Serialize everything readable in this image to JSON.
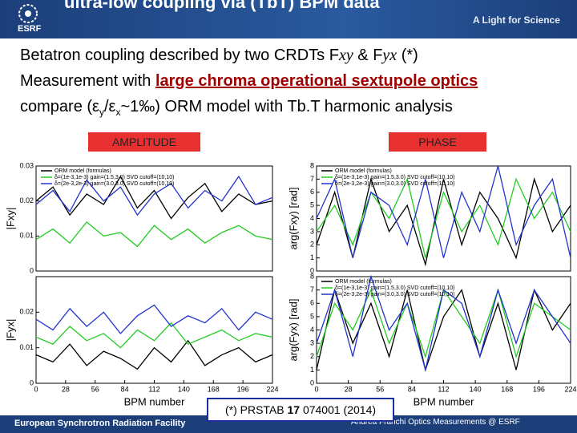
{
  "header": {
    "title": "ultra-low coupling via (TbT) BPM data",
    "logo": "ESRF",
    "tagline": "A Light for Science"
  },
  "bullets": {
    "line1": [
      "Betatron coupling described by two CRDTs F",
      "xy",
      " & F",
      "yx",
      " (*)"
    ],
    "line2": [
      "Measurement with ",
      "large chroma operational sextupole optics"
    ],
    "line3": [
      "compare (ε",
      "y",
      "/ε",
      "x",
      "~1‰) ORM model with Tb.T harmonic analysis"
    ]
  },
  "labels": {
    "amplitude": "AMPLITUDE",
    "phase": "PHASE"
  },
  "chart_data": [
    {
      "type": "line",
      "ylabel": "|Fxy|",
      "legend": "upper left",
      "x": [
        0,
        16,
        32,
        48,
        64,
        80,
        96,
        112,
        128,
        144,
        160,
        176,
        192,
        208,
        224
      ],
      "xlim": [
        0,
        224
      ],
      "ylim": [
        0,
        0.03
      ],
      "yticks": [
        0,
        0.01,
        0.02,
        0.03
      ],
      "series": [
        {
          "name": "ORM model (formulas)",
          "color": "#000000",
          "values": [
            0.02,
            0.024,
            0.016,
            0.022,
            0.019,
            0.027,
            0.018,
            0.023,
            0.015,
            0.021,
            0.025,
            0.017,
            0.022,
            0.019,
            0.02
          ]
        },
        {
          "name": "δ=(1e-3,1e-3) gain=(1.5,3.0) SVD cutoff=(10,10)",
          "color": "#22cc22",
          "values": [
            0.009,
            0.012,
            0.008,
            0.014,
            0.01,
            0.011,
            0.007,
            0.013,
            0.009,
            0.012,
            0.008,
            0.011,
            0.013,
            0.01,
            0.009
          ]
        },
        {
          "name": "δ=(2e-3,2e-3) gain=(3.0,3.0) SVD cutoff=(10,10)",
          "color": "#2233cc",
          "values": [
            0.019,
            0.023,
            0.017,
            0.026,
            0.02,
            0.024,
            0.016,
            0.022,
            0.025,
            0.018,
            0.023,
            0.02,
            0.027,
            0.019,
            0.021
          ]
        }
      ]
    },
    {
      "type": "line",
      "ylabel": "|Fyx|",
      "xlabel": "BPM number",
      "x": [
        0,
        16,
        32,
        48,
        64,
        80,
        96,
        112,
        128,
        144,
        160,
        176,
        192,
        208,
        224
      ],
      "xlim": [
        0,
        224
      ],
      "xticks": [
        0,
        28,
        56,
        84,
        112,
        140,
        168,
        196,
        224
      ],
      "ylim": [
        0,
        0.03
      ],
      "yticks": [
        0,
        0.01,
        0.02
      ],
      "series": [
        {
          "color": "#000000",
          "values": [
            0.008,
            0.006,
            0.011,
            0.005,
            0.009,
            0.007,
            0.004,
            0.01,
            0.006,
            0.012,
            0.005,
            0.008,
            0.01,
            0.006,
            0.008
          ]
        },
        {
          "color": "#22cc22",
          "values": [
            0.013,
            0.011,
            0.016,
            0.012,
            0.014,
            0.01,
            0.015,
            0.012,
            0.017,
            0.011,
            0.013,
            0.015,
            0.012,
            0.014,
            0.013
          ]
        },
        {
          "color": "#2233cc",
          "values": [
            0.018,
            0.015,
            0.021,
            0.016,
            0.02,
            0.014,
            0.019,
            0.022,
            0.016,
            0.019,
            0.017,
            0.021,
            0.015,
            0.02,
            0.018
          ]
        }
      ]
    },
    {
      "type": "line",
      "ylabel": "arg(Fxy)  [rad]",
      "legend": "upper left",
      "x": [
        0,
        16,
        32,
        48,
        64,
        80,
        96,
        112,
        128,
        144,
        160,
        176,
        192,
        208,
        224
      ],
      "xlim": [
        0,
        224
      ],
      "ylim": [
        0,
        8
      ],
      "yticks": [
        0,
        1,
        2,
        3,
        4,
        5,
        6,
        7,
        8
      ],
      "series": [
        {
          "name": "ORM model (formulas)",
          "color": "#000000",
          "values": [
            2,
            6,
            1,
            7,
            3,
            5,
            0.5,
            7,
            2,
            6,
            4,
            1,
            7,
            3,
            5
          ]
        },
        {
          "name": "δ=(1e-3,1e-3) gain=(1.5,3.0) SVD cutoff=(10,10)",
          "color": "#22cc22",
          "values": [
            3,
            5,
            2,
            6,
            4,
            7,
            1,
            6,
            3,
            5,
            2,
            7,
            4,
            6,
            3
          ]
        },
        {
          "name": "δ=(2e-3,2e-3) gain=(3.0,3.0) SVD cutoff=(10,10)",
          "color": "#2233cc",
          "values": [
            4,
            7,
            1,
            6,
            5,
            2,
            7,
            1,
            6,
            3,
            8,
            2,
            5,
            7,
            1
          ]
        }
      ]
    },
    {
      "type": "line",
      "ylabel": "arg(Fyx) [rad]",
      "xlabel": "BPM number",
      "legend": "upper left",
      "x": [
        0,
        16,
        32,
        48,
        64,
        80,
        96,
        112,
        128,
        144,
        160,
        176,
        192,
        208,
        224
      ],
      "xlim": [
        0,
        224
      ],
      "xticks": [
        0,
        28,
        56,
        84,
        112,
        140,
        168,
        196,
        224
      ],
      "ylim": [
        0,
        8
      ],
      "yticks": [
        0,
        1,
        2,
        3,
        4,
        5,
        6,
        7,
        8
      ],
      "series": [
        {
          "name": "ORM model (formulas)",
          "color": "#000000",
          "values": [
            1,
            7,
            3,
            6,
            2,
            7,
            1,
            5,
            7,
            2,
            6,
            1,
            7,
            4,
            6
          ]
        },
        {
          "name": "δ=(1e-3,1e-3) gain=(1.5,3.0) SVD cutoff=(10,10)",
          "color": "#22cc22",
          "values": [
            2,
            6,
            4,
            7,
            3,
            6,
            2,
            7,
            5,
            3,
            7,
            2,
            6,
            5,
            4
          ]
        },
        {
          "name": "δ=(2e-3,2e-3) gain=(3.0,3.0) SVD cutoff=(10,10)",
          "color": "#2233cc",
          "values": [
            3,
            7,
            2,
            8,
            4,
            6,
            1,
            7,
            6,
            2,
            7,
            3,
            7,
            5,
            3
          ]
        }
      ]
    }
  ],
  "footnote": [
    "(*) PRSTAB ",
    "17",
    " 074001 (2014)"
  ],
  "footer": {
    "institution": "European Synchrotron Radiation Facility",
    "author": "Andrea Franchi Optics Measurements  @ ESRF"
  }
}
